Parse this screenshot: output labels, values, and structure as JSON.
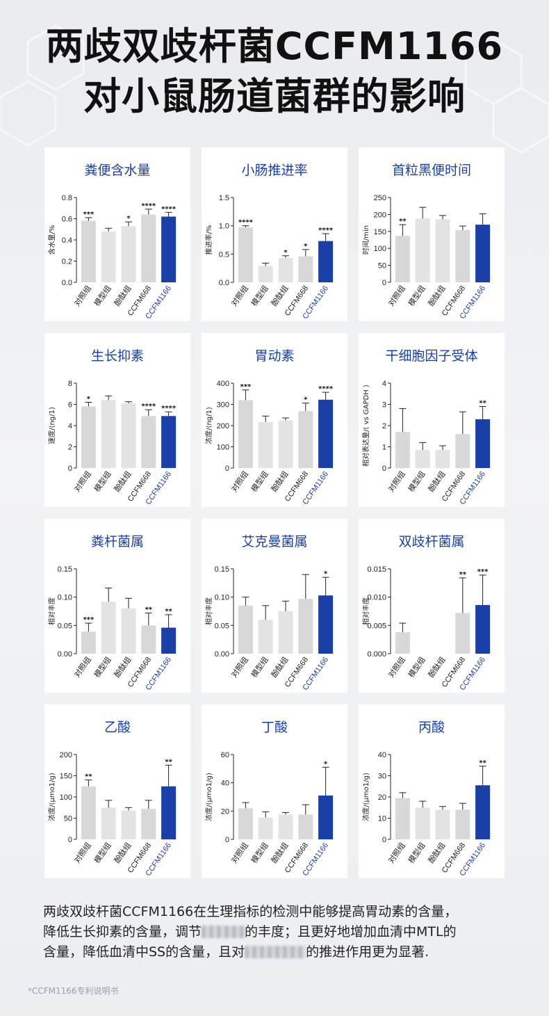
{
  "title": {
    "line1": "两歧双歧杆菌CCFM1166",
    "line2": "对小鼠肠道菌群的影响"
  },
  "colors": {
    "control": "#d9d9d9",
    "model": "#d9d9d9",
    "highlight": "#1a3fa6",
    "title": "#1a3fa6"
  },
  "categories": [
    "对照组",
    "模型组",
    "酚酞组",
    "CCFM668",
    "CCFM1166"
  ],
  "chart_data": [
    {
      "type": "bar",
      "title": "粪便含水量",
      "ylabel": "含水量/%",
      "ylim": [
        0,
        0.8
      ],
      "ticks": [
        "0.0",
        "0.2",
        "0.4",
        "0.6",
        "0.8"
      ],
      "categories": [
        "对照组",
        "模型组",
        "酚酞组",
        "CCFM668",
        "CCFM1166"
      ],
      "values": [
        0.58,
        0.48,
        0.53,
        0.64,
        0.62
      ],
      "errors": [
        0.03,
        0.03,
        0.04,
        0.05,
        0.04
      ],
      "sig": [
        "***",
        "",
        "*",
        "****",
        "****"
      ]
    },
    {
      "type": "bar",
      "title": "小肠推进率",
      "ylabel": "推进率/%",
      "ylim": [
        0,
        1.5
      ],
      "ticks": [
        "0.0",
        "0.5",
        "1.0",
        "1.5"
      ],
      "categories": [
        "对照组",
        "模型组",
        "酚酞组",
        "CCFM668",
        "CCFM1166"
      ],
      "values": [
        0.97,
        0.29,
        0.43,
        0.46,
        0.73
      ],
      "errors": [
        0.03,
        0.05,
        0.04,
        0.12,
        0.13
      ],
      "sig": [
        "****",
        "",
        "*",
        "*",
        "****"
      ]
    },
    {
      "type": "bar",
      "title": "首粒黑便时间",
      "ylabel": "时间/min",
      "ylim": [
        0,
        250
      ],
      "ticks": [
        "0",
        "50",
        "100",
        "150",
        "200",
        "250"
      ],
      "categories": [
        "对照组",
        "模型组",
        "酚酞组",
        "CCFM668",
        "CCFM1166"
      ],
      "values": [
        137,
        188,
        186,
        154,
        170
      ],
      "errors": [
        33,
        33,
        11,
        12,
        32
      ],
      "sig": [
        "**",
        "",
        "",
        "",
        ""
      ]
    },
    {
      "type": "bar",
      "title": "生长抑素",
      "ylabel": "速度/(ng/1)",
      "ylim": [
        0,
        8
      ],
      "ticks": [
        "0",
        "2",
        "4",
        "6",
        "8"
      ],
      "categories": [
        "对照组",
        "模型组",
        "酚酞组",
        "CCFM668",
        "CCFM1166"
      ],
      "values": [
        5.8,
        6.4,
        6.1,
        4.9,
        4.9
      ],
      "errors": [
        0.4,
        0.4,
        0.15,
        0.6,
        0.4
      ],
      "sig": [
        "*",
        "",
        "",
        "****",
        "****"
      ]
    },
    {
      "type": "bar",
      "title": "胃动素",
      "ylabel": "浓度/(ng/1)",
      "ylim": [
        0,
        400
      ],
      "ticks": [
        "0",
        "100",
        "200",
        "300",
        "400"
      ],
      "categories": [
        "对照组",
        "模型组",
        "酚酞组",
        "CCFM668",
        "CCFM1166"
      ],
      "values": [
        320,
        217,
        224,
        268,
        322
      ],
      "errors": [
        48,
        28,
        12,
        38,
        35
      ],
      "sig": [
        "***",
        "",
        "",
        "*",
        "****"
      ]
    },
    {
      "type": "bar",
      "title": "干细胞因子受体",
      "ylabel": "相对表达量/( vs GAPDH )",
      "ylim": [
        0,
        4
      ],
      "ticks": [
        "0",
        "1",
        "2",
        "3",
        "4"
      ],
      "categories": [
        "对照组",
        "模型组",
        "酚酞组",
        "CCFM668",
        "CCFM1166"
      ],
      "values": [
        1.7,
        0.85,
        0.85,
        1.6,
        2.3
      ],
      "errors": [
        1.1,
        0.35,
        0.2,
        1.05,
        0.6
      ],
      "sig": [
        "",
        "",
        "",
        "",
        "**"
      ]
    },
    {
      "type": "bar",
      "title": "粪杆菌属",
      "ylabel": "相对丰度",
      "ylim": [
        0,
        0.15
      ],
      "ticks": [
        "0.00",
        "0.05",
        "0.10",
        "0.15"
      ],
      "categories": [
        "对照组",
        "模型组",
        "酚酞组",
        "CCFM668",
        "CCFM1166"
      ],
      "values": [
        0.039,
        0.092,
        0.08,
        0.05,
        0.046
      ],
      "errors": [
        0.015,
        0.024,
        0.018,
        0.022,
        0.023
      ],
      "sig": [
        "***",
        "",
        "",
        "**",
        "**"
      ]
    },
    {
      "type": "bar",
      "title": "艾克曼菌属",
      "ylabel": "相对丰度",
      "ylim": [
        0,
        0.15
      ],
      "ticks": [
        "0.00",
        "0.05",
        "0.10",
        "0.15"
      ],
      "categories": [
        "对照组",
        "模型组",
        "酚酞组",
        "CCFM668",
        "CCFM1166"
      ],
      "values": [
        0.085,
        0.06,
        0.075,
        0.097,
        0.103
      ],
      "errors": [
        0.015,
        0.025,
        0.018,
        0.043,
        0.032
      ],
      "sig": [
        "",
        "",
        "",
        "",
        "*"
      ]
    },
    {
      "type": "bar",
      "title": "双歧杆菌属",
      "ylabel": "相对丰度",
      "ylim": [
        0,
        0.015
      ],
      "ticks": [
        "0.000",
        "0.005",
        "0.010",
        "0.015"
      ],
      "categories": [
        "对照组",
        "模型组",
        "酚酞组",
        "CCFM668",
        "CCFM1166"
      ],
      "values": [
        0.0038,
        0,
        0,
        0.0072,
        0.0086
      ],
      "errors": [
        0.0016,
        0,
        0,
        0.0062,
        0.0053
      ],
      "sig": [
        "",
        "",
        "",
        "**",
        "***"
      ]
    },
    {
      "type": "bar",
      "title": "乙酸",
      "ylabel": "浓度/(μmo1/g)",
      "ylim": [
        0,
        200
      ],
      "ticks": [
        "0",
        "50",
        "100",
        "150",
        "200"
      ],
      "categories": [
        "对照组",
        "模型组",
        "酚酞组",
        "CCFM668",
        "CCFM1166"
      ],
      "values": [
        125,
        75,
        68,
        72,
        125
      ],
      "errors": [
        15,
        17,
        7,
        20,
        50
      ],
      "sig": [
        "**",
        "",
        "",
        "",
        "**"
      ]
    },
    {
      "type": "bar",
      "title": "丁酸",
      "ylabel": "浓度/(μmo1/g)",
      "ylim": [
        0,
        60
      ],
      "ticks": [
        "0",
        "20",
        "40",
        "60"
      ],
      "categories": [
        "对照组",
        "模型组",
        "酚酞组",
        "CCFM668",
        "CCFM1166"
      ],
      "values": [
        22,
        15.5,
        17.5,
        17.5,
        31
      ],
      "errors": [
        4,
        4,
        1.5,
        7,
        20
      ],
      "sig": [
        "",
        "",
        "",
        "",
        "*"
      ]
    },
    {
      "type": "bar",
      "title": "丙酸",
      "ylabel": "浓度/(μmo1/g)",
      "ylim": [
        0,
        40
      ],
      "ticks": [
        "0",
        "10",
        "20",
        "30",
        "40"
      ],
      "categories": [
        "对照组",
        "模型组",
        "酚酞组",
        "CCFM668",
        "CCFM1166"
      ],
      "values": [
        19.5,
        15,
        14,
        14,
        25.5
      ],
      "errors": [
        2.5,
        3,
        1.5,
        3,
        9
      ],
      "sig": [
        "",
        "",
        "",
        "",
        "**"
      ]
    }
  ],
  "description": {
    "p1": "两歧双歧杆菌CCFM1166在生理指标的检测中能够提高胃动素的含量，",
    "p2a": "降低生长抑素的含量，调节",
    "p2b": "的丰度；且更好地增加血清中MTL的",
    "p3a": "含量，降低血清中SS的含量，且对",
    "p3b": "的推进作用更为显著."
  },
  "footnote": "*CCFM1166专利说明书"
}
